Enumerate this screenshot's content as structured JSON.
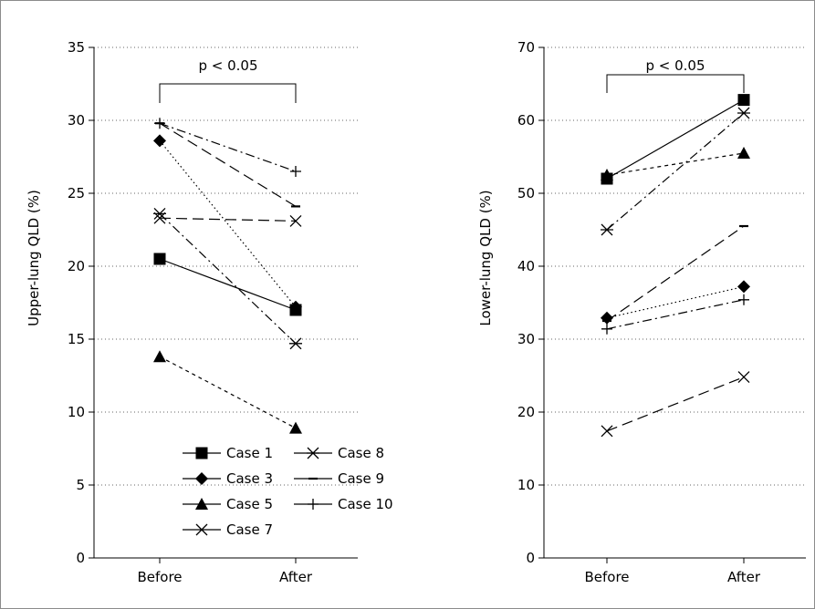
{
  "chart_data": [
    {
      "type": "line",
      "categories": [
        "Before",
        "After"
      ],
      "ylabel": "Upper-lung QLD (%)",
      "ylim": [
        0,
        35
      ],
      "yticks": [
        "0",
        "5",
        "10",
        "15",
        "20",
        "25",
        "30",
        "35"
      ],
      "grid": true,
      "annotation": "p < 0.05",
      "legend": {
        "placement": "bottom-center",
        "entries": [
          "Case 1",
          "Case 8",
          "Case 3",
          "Case 9",
          "Case 5",
          "Case 10",
          "Case 7"
        ]
      },
      "series": [
        {
          "name": "Case 1",
          "values": [
            20.5,
            17.0
          ],
          "marker": "square",
          "dash": "solid"
        },
        {
          "name": "Case 3",
          "values": [
            28.6,
            17.2
          ],
          "marker": "diamond",
          "dash": "dotted"
        },
        {
          "name": "Case 5",
          "values": [
            13.8,
            8.9
          ],
          "marker": "triangle",
          "dash": "short-dash"
        },
        {
          "name": "Case 7",
          "values": [
            23.3,
            23.1
          ],
          "marker": "x",
          "dash": "long-dash"
        },
        {
          "name": "Case 8",
          "values": [
            23.6,
            14.7
          ],
          "marker": "asterisk",
          "dash": "dash-dot"
        },
        {
          "name": "Case 9",
          "values": [
            29.8,
            24.1
          ],
          "marker": "dash",
          "dash": "long-dash"
        },
        {
          "name": "Case 10",
          "values": [
            29.8,
            26.5
          ],
          "marker": "plus",
          "dash": "dash-dot"
        }
      ]
    },
    {
      "type": "line",
      "categories": [
        "Before",
        "After"
      ],
      "ylabel": "Lower-lung QLD (%)",
      "ylim": [
        0,
        70
      ],
      "yticks": [
        "0",
        "10",
        "20",
        "30",
        "40",
        "50",
        "60",
        "70"
      ],
      "grid": true,
      "annotation": "p < 0.05",
      "series": [
        {
          "name": "Case 1",
          "values": [
            52.0,
            62.8
          ],
          "marker": "square",
          "dash": "solid"
        },
        {
          "name": "Case 3",
          "values": [
            32.9,
            37.2
          ],
          "marker": "diamond",
          "dash": "dotted"
        },
        {
          "name": "Case 5",
          "values": [
            52.5,
            55.5
          ],
          "marker": "triangle",
          "dash": "short-dash"
        },
        {
          "name": "Case 7",
          "values": [
            17.4,
            24.8
          ],
          "marker": "x",
          "dash": "long-dash"
        },
        {
          "name": "Case 8",
          "values": [
            45.0,
            61.0
          ],
          "marker": "asterisk",
          "dash": "dash-dot"
        },
        {
          "name": "Case 9",
          "values": [
            32.5,
            45.5
          ],
          "marker": "dash",
          "dash": "long-dash"
        },
        {
          "name": "Case 10",
          "values": [
            31.4,
            35.4
          ],
          "marker": "plus",
          "dash": "dash-dot"
        }
      ]
    }
  ]
}
